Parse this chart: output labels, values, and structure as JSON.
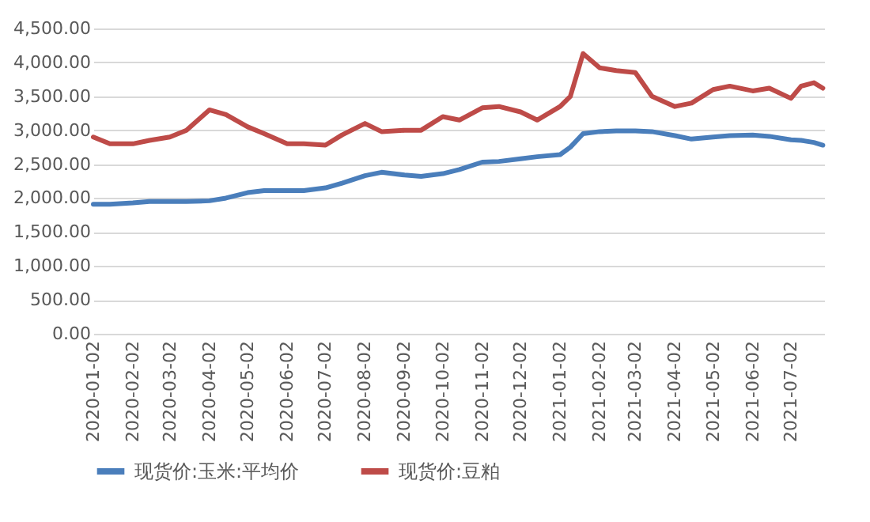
{
  "chart_data": {
    "type": "line",
    "x": [
      "2020-01-02",
      "2020-01-15",
      "2020-02-02",
      "2020-02-15",
      "2020-03-02",
      "2020-03-15",
      "2020-04-02",
      "2020-04-15",
      "2020-05-02",
      "2020-05-15",
      "2020-06-02",
      "2020-06-15",
      "2020-07-02",
      "2020-07-15",
      "2020-08-02",
      "2020-08-15",
      "2020-09-02",
      "2020-09-15",
      "2020-10-02",
      "2020-10-15",
      "2020-11-02",
      "2020-11-15",
      "2020-12-02",
      "2020-12-15",
      "2021-01-02",
      "2021-01-10",
      "2021-01-20",
      "2021-02-02",
      "2021-02-15",
      "2021-03-02",
      "2021-03-15",
      "2021-04-02",
      "2021-04-15",
      "2021-05-02",
      "2021-05-15",
      "2021-06-02",
      "2021-06-15",
      "2021-07-02",
      "2021-07-10",
      "2021-07-20",
      "2021-07-27"
    ],
    "series": [
      {
        "name": "现货价:玉米:平均价",
        "color": "#4a7ebb",
        "values": [
          1910,
          1910,
          1930,
          1950,
          1950,
          1950,
          1960,
          2000,
          2080,
          2110,
          2110,
          2110,
          2150,
          2220,
          2330,
          2380,
          2340,
          2320,
          2360,
          2420,
          2530,
          2540,
          2580,
          2610,
          2640,
          2750,
          2950,
          2980,
          2990,
          2990,
          2980,
          2920,
          2870,
          2900,
          2920,
          2930,
          2910,
          2860,
          2850,
          2820,
          2780
        ]
      },
      {
        "name": "现货价:豆粕",
        "color": "#be4b48",
        "values": [
          2900,
          2800,
          2800,
          2850,
          2900,
          3000,
          3300,
          3230,
          3050,
          2950,
          2800,
          2800,
          2780,
          2930,
          3100,
          2980,
          3000,
          3000,
          3200,
          3150,
          3330,
          3350,
          3270,
          3150,
          3350,
          3500,
          4130,
          3920,
          3880,
          3850,
          3500,
          3350,
          3400,
          3600,
          3650,
          3580,
          3620,
          3470,
          3650,
          3700,
          3620
        ]
      }
    ],
    "xlim": [
      "2020-01-02",
      "2021-07-28"
    ],
    "xticks": [
      "2020-01-02",
      "2020-02-02",
      "2020-03-02",
      "2020-04-02",
      "2020-05-02",
      "2020-06-02",
      "2020-07-02",
      "2020-08-02",
      "2020-09-02",
      "2020-10-02",
      "2020-11-02",
      "2020-12-02",
      "2021-01-02",
      "2021-02-02",
      "2021-03-02",
      "2021-04-02",
      "2021-05-02",
      "2021-06-02",
      "2021-07-02"
    ],
    "ylim": [
      0,
      4500
    ],
    "yticks": [
      {
        "value": 0,
        "label": "0.00"
      },
      {
        "value": 500,
        "label": "500.00"
      },
      {
        "value": 1000,
        "label": "1,000.00"
      },
      {
        "value": 1500,
        "label": "1,500.00"
      },
      {
        "value": 2000,
        "label": "2,000.00"
      },
      {
        "value": 2500,
        "label": "2,500.00"
      },
      {
        "value": 3000,
        "label": "3,000.00"
      },
      {
        "value": 3500,
        "label": "3,500.00"
      },
      {
        "value": 4000,
        "label": "4,000.00"
      },
      {
        "value": 4500,
        "label": "4,500.00"
      }
    ],
    "grid": "y",
    "legend": "bottom"
  }
}
